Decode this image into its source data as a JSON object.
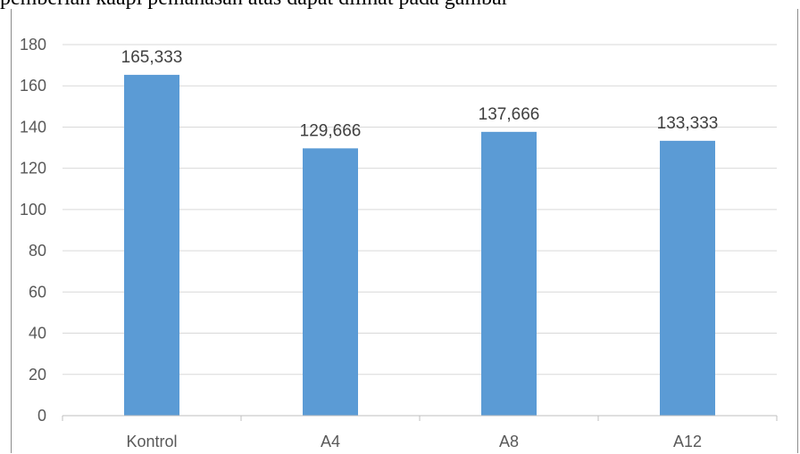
{
  "page": {
    "top_text": "pemberian kaapi pemanasan atas dapat dilihat pada gambar"
  },
  "colors": {
    "bar": "#5b9bd5",
    "grid": "#d9d9d9",
    "axis": "#bfbfbf",
    "frame": "#8c8c8c",
    "tick_text": "#595959",
    "label_text": "#404040"
  },
  "chart_data": {
    "type": "bar",
    "categories": [
      "Kontrol",
      "A4",
      "A8",
      "A12"
    ],
    "values": [
      165.333,
      129.666,
      137.666,
      133.333
    ],
    "data_labels": [
      "165,333",
      "129,666",
      "137,666",
      "133,333"
    ],
    "ylim": [
      0,
      180
    ],
    "yticks": [
      0,
      20,
      40,
      60,
      80,
      100,
      120,
      140,
      160,
      180
    ],
    "grid": true,
    "legend": "none",
    "title": "",
    "xlabel": "",
    "ylabel": ""
  }
}
